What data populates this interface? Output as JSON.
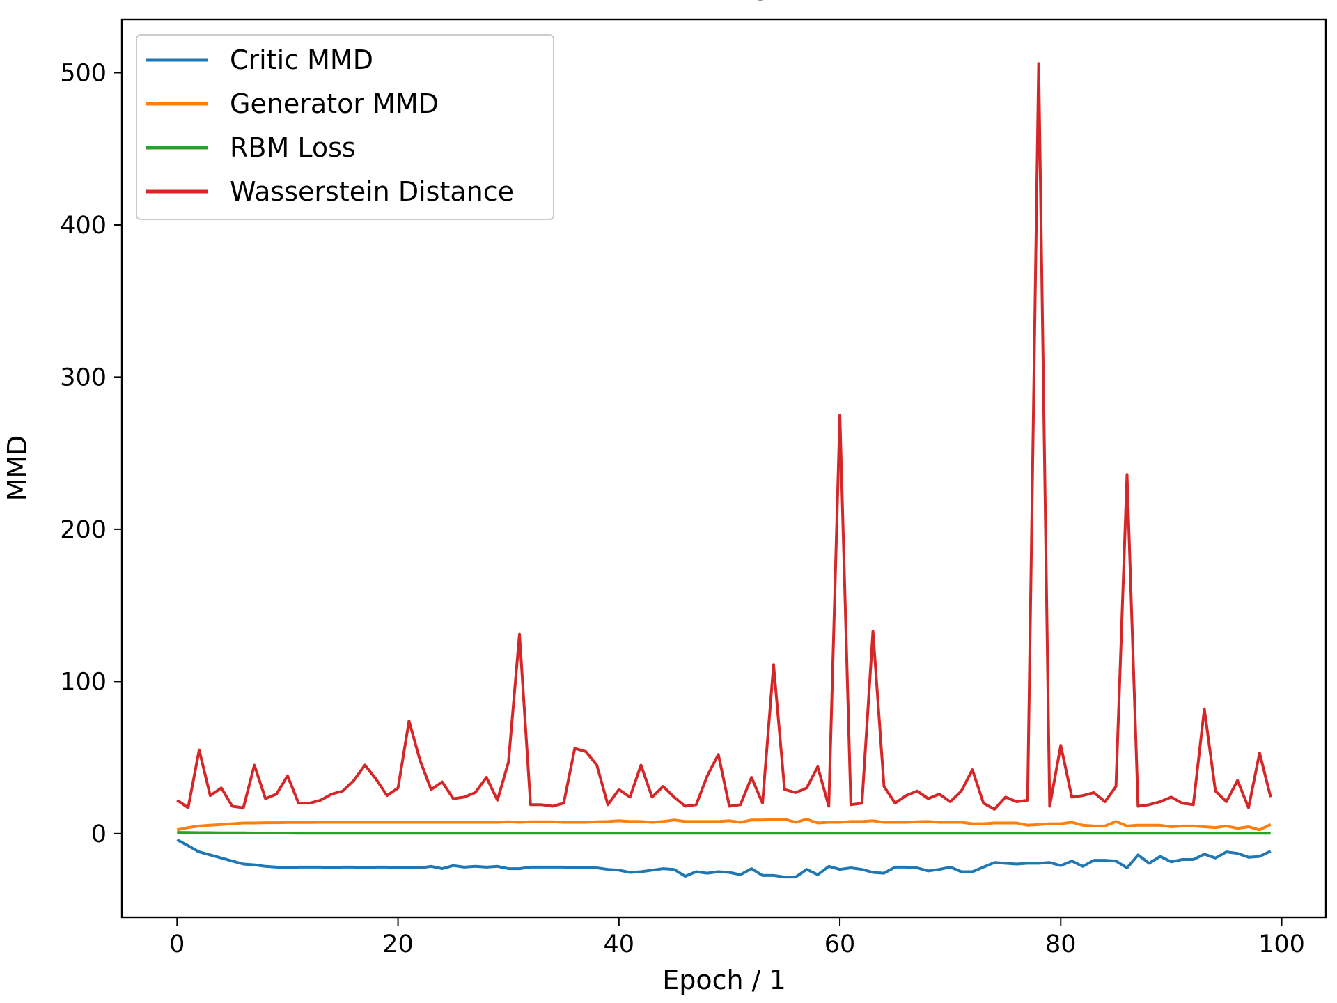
{
  "chart_data": {
    "type": "line",
    "title": "MMDs",
    "xlabel": "Epoch / 1",
    "ylabel": "MMD",
    "xlim": [
      -5,
      104
    ],
    "ylim": [
      -55,
      535
    ],
    "xticks": [
      0,
      20,
      40,
      60,
      80,
      100
    ],
    "yticks": [
      0,
      100,
      200,
      300,
      400,
      500
    ],
    "legend_position": "top-left",
    "grid": false,
    "x": [
      0,
      1,
      2,
      3,
      4,
      5,
      6,
      7,
      8,
      9,
      10,
      11,
      12,
      13,
      14,
      15,
      16,
      17,
      18,
      19,
      20,
      21,
      22,
      23,
      24,
      25,
      26,
      27,
      28,
      29,
      30,
      31,
      32,
      33,
      34,
      35,
      36,
      37,
      38,
      39,
      40,
      41,
      42,
      43,
      44,
      45,
      46,
      47,
      48,
      49,
      50,
      51,
      52,
      53,
      54,
      55,
      56,
      57,
      58,
      59,
      60,
      61,
      62,
      63,
      64,
      65,
      66,
      67,
      68,
      69,
      70,
      71,
      72,
      73,
      74,
      75,
      76,
      77,
      78,
      79,
      80,
      81,
      82,
      83,
      84,
      85,
      86,
      87,
      88,
      89,
      90,
      91,
      92,
      93,
      94,
      95,
      96,
      97,
      98,
      99
    ],
    "series": [
      {
        "name": "Critic MMD",
        "color": "#1f77b4",
        "values": [
          -4,
          -8,
          -12,
          -14,
          -16,
          -18,
          -20,
          -20.5,
          -21.5,
          -22,
          -22.5,
          -22,
          -22,
          -22,
          -22.5,
          -22,
          -22,
          -22.5,
          -22,
          -22,
          -22.5,
          -22,
          -22.5,
          -21.5,
          -23,
          -21,
          -22,
          -21.5,
          -22,
          -21.5,
          -23,
          -23,
          -22,
          -22,
          -22,
          -22,
          -22.5,
          -22.5,
          -22.5,
          -23.5,
          -24,
          -25.5,
          -25,
          -24,
          -23,
          -23.5,
          -28,
          -25,
          -26,
          -25,
          -25.5,
          -27,
          -23,
          -27.5,
          -27.5,
          -28.5,
          -28.5,
          -23.5,
          -27,
          -21.5,
          -23.5,
          -22.5,
          -23.5,
          -25.5,
          -26,
          -22,
          -22,
          -22.5,
          -24.5,
          -23.5,
          -22,
          -25,
          -25,
          -22,
          -19,
          -19.5,
          -20,
          -19.5,
          -19.5,
          -19,
          -21,
          -18,
          -21.5,
          -17.5,
          -17.5,
          -18,
          -22.5,
          -14,
          -19.5,
          -15,
          -18.5,
          -17,
          -17,
          -13.5,
          -16,
          -12,
          -13,
          -15.5,
          -15,
          -11.5
        ]
      },
      {
        "name": "Generator MMD",
        "color": "#ff7f0e",
        "values": [
          2.5,
          4,
          5,
          5.5,
          6,
          6.5,
          7,
          7,
          7.2,
          7.2,
          7.4,
          7.4,
          7.4,
          7.5,
          7.5,
          7.5,
          7.5,
          7.5,
          7.5,
          7.5,
          7.5,
          7.5,
          7.5,
          7.5,
          7.5,
          7.5,
          7.5,
          7.5,
          7.5,
          7.5,
          7.8,
          7.5,
          7.8,
          7.8,
          7.8,
          7.5,
          7.5,
          7.5,
          7.8,
          8,
          8.5,
          8,
          8,
          7.5,
          8,
          9,
          8,
          8,
          8,
          8,
          8.5,
          7.5,
          9,
          9,
          9.2,
          9.5,
          7.5,
          9.5,
          7,
          7.5,
          7.5,
          8,
          8,
          8.5,
          7.5,
          7.5,
          7.5,
          7.8,
          8,
          7.5,
          7.5,
          7.5,
          6.5,
          6.5,
          7,
          7,
          7,
          5.5,
          6,
          6.5,
          6.5,
          7.5,
          5.5,
          5,
          5,
          8,
          5,
          5.5,
          5.5,
          5.5,
          4.5,
          5,
          5,
          4.5,
          4,
          5,
          3.5,
          4.5,
          2.5,
          6
        ]
      },
      {
        "name": "RBM Loss",
        "color": "#2ca02c",
        "values": [
          0.8,
          0.7,
          0.6,
          0.6,
          0.5,
          0.5,
          0.5,
          0.4,
          0.4,
          0.4,
          0.4,
          0.3,
          0.3,
          0.3,
          0.3,
          0.3,
          0.3,
          0.3,
          0.3,
          0.3,
          0.3,
          0.3,
          0.3,
          0.3,
          0.3,
          0.3,
          0.3,
          0.3,
          0.3,
          0.3,
          0.3,
          0.3,
          0.3,
          0.3,
          0.3,
          0.3,
          0.3,
          0.3,
          0.3,
          0.3,
          0.3,
          0.3,
          0.3,
          0.3,
          0.3,
          0.3,
          0.3,
          0.3,
          0.3,
          0.3,
          0.3,
          0.3,
          0.3,
          0.3,
          0.3,
          0.3,
          0.3,
          0.3,
          0.3,
          0.3,
          0.3,
          0.3,
          0.3,
          0.3,
          0.3,
          0.3,
          0.3,
          0.3,
          0.3,
          0.3,
          0.3,
          0.3,
          0.3,
          0.3,
          0.3,
          0.3,
          0.3,
          0.3,
          0.3,
          0.3,
          0.3,
          0.3,
          0.3,
          0.3,
          0.3,
          0.3,
          0.3,
          0.3,
          0.3,
          0.3,
          0.3,
          0.3,
          0.3,
          0.3,
          0.3,
          0.3,
          0.3,
          0.3,
          0.3,
          0.3
        ]
      },
      {
        "name": "Wasserstein Distance",
        "color": "#d62728",
        "values": [
          22,
          17,
          55,
          25,
          30,
          18,
          17,
          45,
          23,
          26,
          38,
          20,
          20,
          22,
          26,
          28,
          35,
          45,
          36,
          25,
          30,
          74,
          48,
          29,
          34,
          23,
          24,
          27,
          37,
          22,
          47,
          131,
          19,
          19,
          18,
          20,
          56,
          54,
          45,
          19,
          29,
          24,
          45,
          24,
          31,
          24,
          18,
          19,
          38,
          52,
          18,
          19,
          37,
          20,
          111,
          29,
          27,
          30,
          44,
          18,
          275,
          19,
          20,
          133,
          31,
          20,
          25,
          28,
          23,
          26,
          21,
          28,
          42,
          20,
          16,
          24,
          21,
          22,
          506,
          18,
          58,
          24,
          25,
          27,
          21,
          31,
          236,
          18,
          19,
          21,
          24,
          20,
          19,
          82,
          28,
          21,
          35,
          17,
          53,
          24
        ]
      }
    ]
  }
}
